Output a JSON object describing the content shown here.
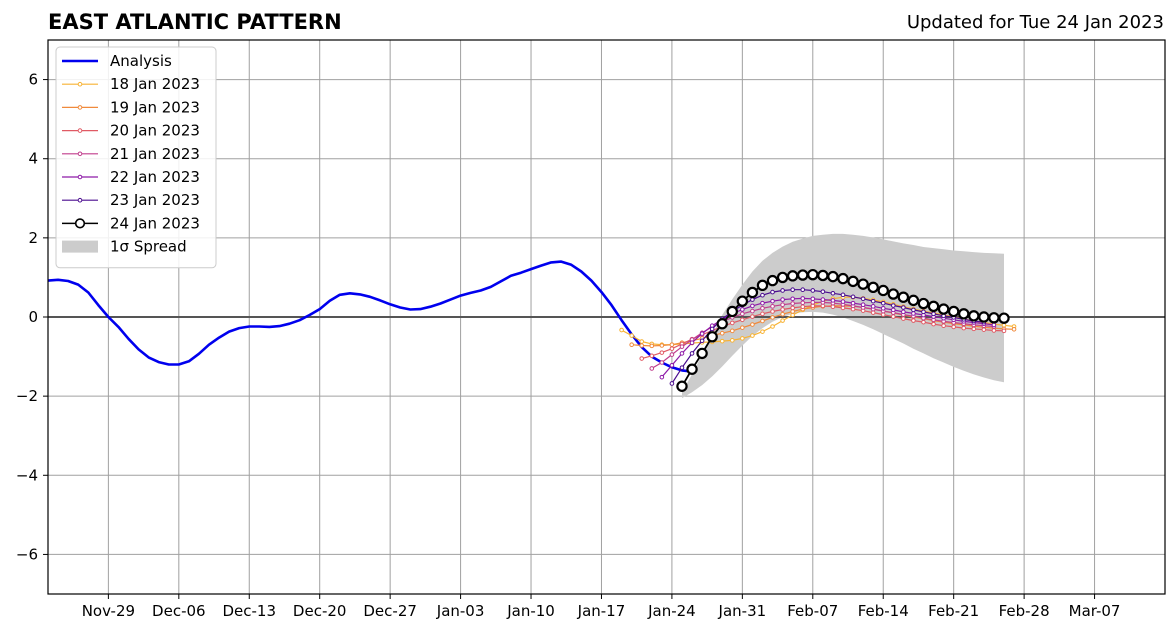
{
  "chart_data": {
    "type": "line",
    "title": "EAST ATLANTIC PATTERN",
    "subtitle": "Updated for Tue 24 Jan 2023",
    "xlabel": "",
    "ylabel": "",
    "x_range": [
      "2022-11-23",
      "2023-03-14"
    ],
    "ylim": [
      -7,
      7
    ],
    "grid": true,
    "legend_position": "upper-left",
    "x_ticks": [
      {
        "date": "2022-11-29",
        "label": "Nov-29"
      },
      {
        "date": "2022-12-06",
        "label": "Dec-06"
      },
      {
        "date": "2022-12-13",
        "label": "Dec-13"
      },
      {
        "date": "2022-12-20",
        "label": "Dec-20"
      },
      {
        "date": "2022-12-27",
        "label": "Dec-27"
      },
      {
        "date": "2023-01-03",
        "label": "Jan-03"
      },
      {
        "date": "2023-01-10",
        "label": "Jan-10"
      },
      {
        "date": "2023-01-17",
        "label": "Jan-17"
      },
      {
        "date": "2023-01-24",
        "label": "Jan-24"
      },
      {
        "date": "2023-01-31",
        "label": "Jan-31"
      },
      {
        "date": "2023-02-07",
        "label": "Feb-07"
      },
      {
        "date": "2023-02-14",
        "label": "Feb-14"
      },
      {
        "date": "2023-02-21",
        "label": "Feb-21"
      },
      {
        "date": "2023-02-28",
        "label": "Feb-28"
      },
      {
        "date": "2023-03-07",
        "label": "Mar-07"
      }
    ],
    "y_ticks": [
      {
        "value": 6,
        "label": "6"
      },
      {
        "value": 4,
        "label": "4"
      },
      {
        "value": 2,
        "label": "2"
      },
      {
        "value": 0,
        "label": "0"
      },
      {
        "value": -2,
        "label": "−2"
      },
      {
        "value": -4,
        "label": "−4"
      },
      {
        "value": -6,
        "label": "−6"
      }
    ],
    "analysis": {
      "name": "Analysis",
      "color": "#0000ee",
      "start": "2022-11-23",
      "values": [
        0.92,
        0.94,
        0.91,
        0.82,
        0.62,
        0.3,
        0.0,
        -0.25,
        -0.55,
        -0.82,
        -1.02,
        -1.14,
        -1.2,
        -1.2,
        -1.12,
        -0.93,
        -0.7,
        -0.52,
        -0.37,
        -0.28,
        -0.24,
        -0.24,
        -0.25,
        -0.23,
        -0.17,
        -0.08,
        0.05,
        0.2,
        0.41,
        0.56,
        0.6,
        0.57,
        0.51,
        0.42,
        0.32,
        0.24,
        0.19,
        0.2,
        0.26,
        0.34,
        0.44,
        0.54,
        0.61,
        0.67,
        0.76,
        0.9,
        1.04,
        1.12,
        1.21,
        1.3,
        1.38,
        1.4,
        1.32,
        1.15,
        0.92,
        0.63,
        0.3,
        -0.08,
        -0.44,
        -0.76,
        -1.0,
        -1.15,
        -1.27,
        -1.35,
        -1.38
      ]
    },
    "spread": {
      "name": "1σ Spread",
      "color": "#cccccc",
      "start": "2023-01-25",
      "upper": [
        -1.9,
        -1.45,
        -0.95,
        -0.45,
        0.05,
        0.45,
        0.82,
        1.15,
        1.42,
        1.62,
        1.78,
        1.9,
        1.98,
        2.05,
        2.08,
        2.1,
        2.1,
        2.08,
        2.05,
        2.01,
        1.96,
        1.91,
        1.86,
        1.82,
        1.77,
        1.74,
        1.71,
        1.68,
        1.66,
        1.64,
        1.62,
        1.61,
        1.6
      ],
      "lower": [
        -2.05,
        -1.9,
        -1.72,
        -1.5,
        -1.25,
        -0.98,
        -0.72,
        -0.48,
        -0.28,
        -0.12,
        0.0,
        0.08,
        0.12,
        0.13,
        0.11,
        0.06,
        -0.01,
        -0.1,
        -0.2,
        -0.31,
        -0.43,
        -0.55,
        -0.67,
        -0.8,
        -0.92,
        -1.04,
        -1.15,
        -1.26,
        -1.36,
        -1.45,
        -1.53,
        -1.6,
        -1.65
      ]
    },
    "forecasts": [
      {
        "name": "18 Jan 2023",
        "color": "#f7b233",
        "start": "2023-01-19",
        "values": [
          -0.33,
          -0.47,
          -0.62,
          -0.68,
          -0.7,
          -0.7,
          -0.68,
          -0.66,
          -0.64,
          -0.63,
          -0.61,
          -0.59,
          -0.54,
          -0.47,
          -0.37,
          -0.24,
          -0.09,
          0.05,
          0.18,
          0.3,
          0.4,
          0.46,
          0.5,
          0.5,
          0.47,
          0.43,
          0.38,
          0.32,
          0.26,
          0.2,
          0.15,
          0.1,
          0.05,
          0.0,
          -0.05,
          -0.1,
          -0.14,
          -0.18,
          -0.21,
          -0.24
        ]
      },
      {
        "name": "19 Jan 2023",
        "color": "#f08a3c",
        "start": "2023-01-20",
        "values": [
          -0.7,
          -0.72,
          -0.73,
          -0.72,
          -0.7,
          -0.65,
          -0.6,
          -0.54,
          -0.47,
          -0.41,
          -0.35,
          -0.27,
          -0.19,
          -0.1,
          -0.01,
          0.07,
          0.14,
          0.2,
          0.24,
          0.27,
          0.28,
          0.28,
          0.27,
          0.24,
          0.2,
          0.15,
          0.1,
          0.05,
          0.0,
          -0.04,
          -0.09,
          -0.13,
          -0.17,
          -0.2,
          -0.23,
          -0.26,
          -0.28,
          -0.3,
          -0.31
        ]
      },
      {
        "name": "20 Jan 2023",
        "color": "#e05a64",
        "start": "2023-01-21",
        "values": [
          -1.05,
          -0.98,
          -0.9,
          -0.8,
          -0.68,
          -0.56,
          -0.45,
          -0.34,
          -0.24,
          -0.15,
          -0.07,
          0.01,
          0.08,
          0.14,
          0.19,
          0.23,
          0.26,
          0.28,
          0.28,
          0.26,
          0.23,
          0.2,
          0.16,
          0.11,
          0.06,
          0.01,
          -0.04,
          -0.09,
          -0.13,
          -0.18,
          -0.22,
          -0.25,
          -0.28,
          -0.3,
          -0.32,
          -0.34,
          -0.35
        ]
      },
      {
        "name": "21 Jan 2023",
        "color": "#c03d8c",
        "start": "2023-01-22",
        "values": [
          -1.3,
          -1.15,
          -0.95,
          -0.75,
          -0.57,
          -0.4,
          -0.25,
          -0.12,
          -0.01,
          0.08,
          0.15,
          0.22,
          0.27,
          0.31,
          0.34,
          0.36,
          0.37,
          0.37,
          0.35,
          0.32,
          0.28,
          0.24,
          0.2,
          0.15,
          0.11,
          0.06,
          0.02,
          -0.03,
          -0.07,
          -0.11,
          -0.14,
          -0.17,
          -0.2,
          -0.22,
          -0.24
        ]
      },
      {
        "name": "22 Jan 2023",
        "color": "#8e1aa8",
        "start": "2023-01-23",
        "values": [
          -1.52,
          -1.22,
          -0.92,
          -0.65,
          -0.42,
          -0.22,
          -0.06,
          0.08,
          0.19,
          0.28,
          0.35,
          0.4,
          0.44,
          0.46,
          0.47,
          0.46,
          0.44,
          0.42,
          0.39,
          0.35,
          0.31,
          0.27,
          0.22,
          0.18,
          0.13,
          0.09,
          0.05,
          0.01,
          -0.03,
          -0.07,
          -0.11,
          -0.14,
          -0.17,
          -0.2
        ]
      },
      {
        "name": "23 Jan 2023",
        "color": "#4a0c8f",
        "start": "2023-01-24",
        "values": [
          -1.68,
          -1.28,
          -0.92,
          -0.6,
          -0.3,
          -0.05,
          0.14,
          0.3,
          0.44,
          0.55,
          0.63,
          0.67,
          0.69,
          0.69,
          0.67,
          0.64,
          0.6,
          0.56,
          0.51,
          0.46,
          0.4,
          0.35,
          0.29,
          0.24,
          0.18,
          0.13,
          0.08,
          0.03,
          -0.01,
          -0.06,
          -0.1,
          -0.13
        ]
      },
      {
        "name": "24 Jan 2023",
        "color": "#000000",
        "marker": "open-circle",
        "start": "2023-01-25",
        "values": [
          -1.75,
          -1.32,
          -0.92,
          -0.5,
          -0.17,
          0.14,
          0.4,
          0.62,
          0.8,
          0.92,
          1.0,
          1.04,
          1.06,
          1.07,
          1.05,
          1.02,
          0.97,
          0.9,
          0.83,
          0.75,
          0.67,
          0.58,
          0.5,
          0.42,
          0.34,
          0.27,
          0.2,
          0.14,
          0.08,
          0.03,
          0.0,
          -0.02,
          -0.03
        ]
      }
    ]
  }
}
